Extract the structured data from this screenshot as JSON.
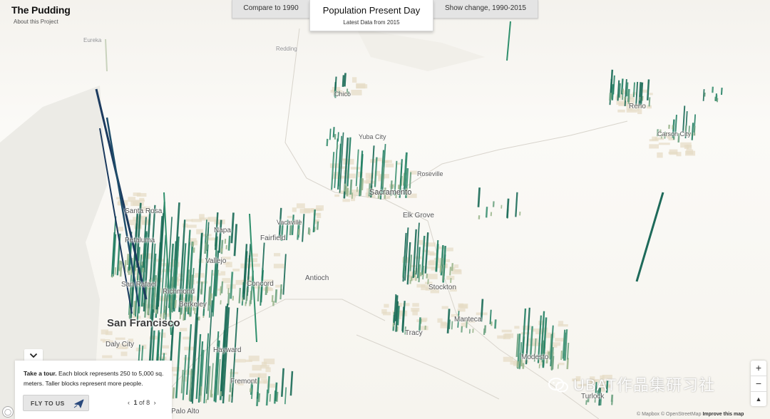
{
  "brand": {
    "name": "The Pudding",
    "about": "About this Project"
  },
  "tabs": {
    "left": "Compare to 1990",
    "center_title": "Population Present Day",
    "center_subtitle": "Latest Data from 2015",
    "right": "Show change, 1990-2015"
  },
  "cities": {
    "eureka": "Eureka",
    "redding": "Redding",
    "chico": "Chico",
    "reno": "Reno",
    "carson_city": "Carson City",
    "yuba_city": "Yuba City",
    "roseville": "Roseville",
    "sacramento": "Sacramento",
    "elk_grove": "Elk Grove",
    "santa_rosa": "Santa Rosa",
    "petaluma": "Petaluma",
    "napa": "Napa",
    "vacaville": "Vacaville",
    "fairfield": "Fairfield",
    "vallejo": "Vallejo",
    "san_rafael": "San Rafael",
    "richmond": "Richmond",
    "concord": "Concord",
    "antioch": "Antioch",
    "stockton": "Stockton",
    "berkeley": "Berkeley",
    "san_francisco": "San Francisco",
    "manteca": "Manteca",
    "tracy": "Tracy",
    "daly_city": "Daly City",
    "hayward": "Hayward",
    "modesto": "Modesto",
    "fremont": "Fremont",
    "turlock": "Turlock",
    "palo_alto": "Palo Alto"
  },
  "tour": {
    "lead": "Take a tour.",
    "body": " Each block represents 250 to 5,000 sq. meters. Taller blocks represent more people.",
    "fly_button": "FLY TO US",
    "page_current": "1",
    "page_sep": "of",
    "page_total": "8"
  },
  "zoom": {
    "in": "+",
    "out": "−",
    "compass": "▲"
  },
  "attribution": {
    "text": "© Mapbox © OpenStreetMap",
    "improve": "Improve this map"
  },
  "watermark": "UBAT作品集研习社",
  "colors": {
    "spike_green": "#2f8f6c",
    "spike_dark": "#1b3a5e",
    "footprint": "#e6dcc4"
  },
  "icons": {
    "toggle": "chevron-down-icon",
    "plane": "plane-icon",
    "prev": "chevron-left-icon",
    "next": "chevron-right-icon"
  }
}
